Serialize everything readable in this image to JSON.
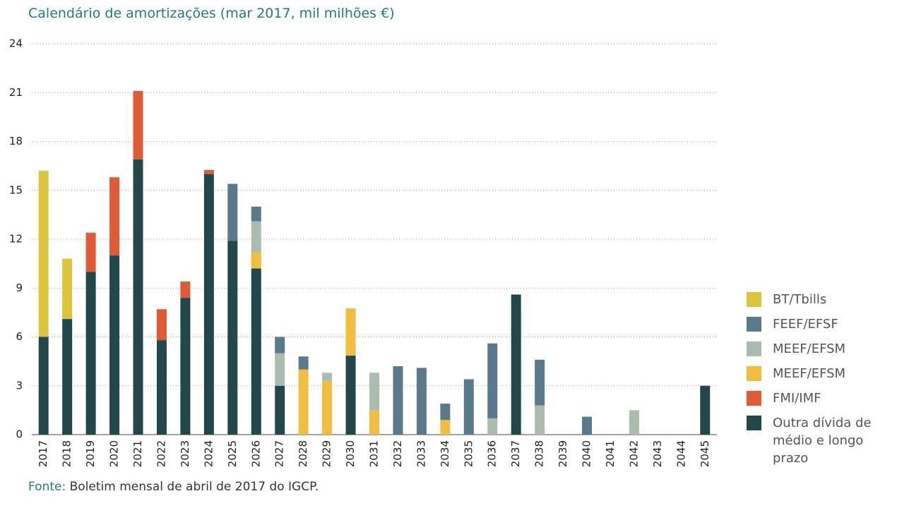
{
  "chart_data": {
    "type": "stacked_bar",
    "title": "Calendário de amortizações (mar 2017, mil milhões €)",
    "source_label": "Fonte:",
    "source": "Boletim mensal de abril de 2017 do IGCP.",
    "categories": [
      "2017",
      "2018",
      "2019",
      "2020",
      "2021",
      "2022",
      "2023",
      "2024",
      "2025",
      "2026",
      "2027",
      "2028",
      "2029",
      "2030",
      "2031",
      "2032",
      "2033",
      "2034",
      "2035",
      "2036",
      "2037",
      "2038",
      "2039",
      "2040",
      "2041",
      "2042",
      "2043",
      "2044",
      "2045"
    ],
    "series": [
      {
        "name": "Outra dívida de médio e longo prazo",
        "color": "#22474a",
        "values": [
          6.0,
          7.1,
          10.0,
          11.0,
          16.9,
          5.8,
          8.4,
          16.0,
          11.9,
          10.2,
          3.0,
          0,
          0,
          4.85,
          0,
          0,
          0,
          0,
          0,
          0,
          8.6,
          0,
          0,
          0,
          0,
          0,
          0,
          0,
          3.0
        ]
      },
      {
        "name": "FMI/IMF",
        "color": "#e05a33",
        "values": [
          0,
          0,
          2.4,
          4.8,
          4.2,
          1.9,
          1.0,
          0.25,
          0,
          0,
          0,
          0,
          0,
          0,
          0,
          0,
          0,
          0,
          0,
          0,
          0,
          0,
          0,
          0,
          0,
          0,
          0,
          0,
          0
        ]
      },
      {
        "name": "MEEF/EFSM",
        "color": "#f0bd3e",
        "values": [
          0,
          0,
          0,
          0,
          0,
          0,
          0,
          0,
          0,
          1.0,
          0,
          4.0,
          3.3,
          2.9,
          1.5,
          0,
          0,
          0.9,
          0,
          0,
          0,
          0,
          0,
          0,
          0,
          0,
          0,
          0,
          0
        ]
      },
      {
        "name": "MEEF/EFSM",
        "color": "#a9bcae",
        "values": [
          0,
          0,
          0,
          0,
          0,
          0,
          0,
          0,
          0,
          1.9,
          2.0,
          0,
          0.5,
          0,
          2.3,
          0,
          0,
          0,
          0,
          1.0,
          0,
          1.8,
          0,
          0,
          0,
          1.5,
          0,
          0,
          0
        ]
      },
      {
        "name": "FEEF/EFSF",
        "color": "#587a8c",
        "values": [
          0,
          0,
          0,
          0,
          0,
          0,
          0,
          0,
          3.5,
          0.9,
          1.0,
          0.8,
          0,
          0,
          0,
          4.2,
          4.1,
          1.0,
          3.4,
          4.6,
          0,
          2.8,
          0,
          1.1,
          0,
          0,
          0,
          0,
          0
        ]
      },
      {
        "name": "BT/Tbills",
        "color": "#dcc53b",
        "values": [
          10.2,
          3.7,
          0,
          0,
          0,
          0,
          0,
          0,
          0,
          0,
          0,
          0,
          0,
          0,
          0,
          0,
          0,
          0,
          0,
          0,
          0,
          0,
          0,
          0,
          0,
          0,
          0,
          0,
          0
        ]
      }
    ],
    "ylim": [
      0,
      24
    ],
    "yticks": [
      0,
      3,
      6,
      9,
      12,
      15,
      18,
      21,
      24
    ],
    "grid": true
  }
}
